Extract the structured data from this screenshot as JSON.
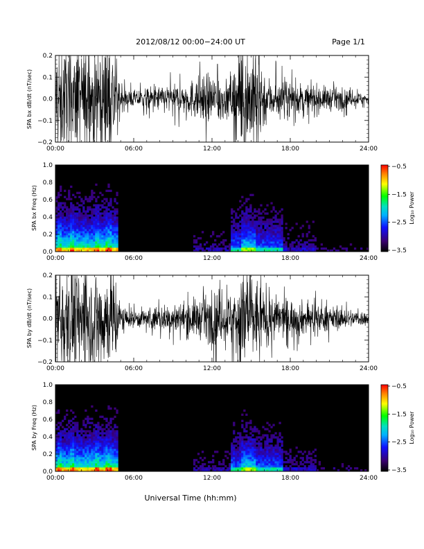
{
  "header": {
    "title": "2012/08/12  00:00−24:00 UT",
    "page": "Page 1/1"
  },
  "footer": {
    "xlabel": "Universal Time (hh:mm)"
  },
  "chart_data": [
    {
      "type": "line",
      "ylabel": "SPA bx dB/dt (nT/sec)",
      "xlim": [
        0,
        24
      ],
      "ylim": [
        -0.2,
        0.2
      ],
      "x_ticks": [
        "00:00",
        "06:00",
        "12:00",
        "18:00",
        "24:00"
      ],
      "y_ticks": [
        "0.2",
        "0.1",
        "0.0",
        "−0.1",
        "−0.2"
      ],
      "envelope": {
        "x": [
          0,
          0.5,
          1,
          1.5,
          2,
          2.5,
          3,
          3.5,
          4,
          4.5,
          5,
          5.5,
          6,
          6.5,
          7,
          7.5,
          8,
          8.5,
          9,
          9.5,
          10,
          10.5,
          11,
          11.5,
          12,
          12.5,
          13,
          13.5,
          14,
          14.5,
          15,
          15.5,
          16,
          16.5,
          17,
          17.5,
          18,
          18.5,
          19,
          19.5,
          20,
          20.5,
          21,
          21.5,
          22,
          22.5,
          23,
          23.5,
          24
        ],
        "amp": [
          0.22,
          0.22,
          0.22,
          0.22,
          0.22,
          0.2,
          0.22,
          0.22,
          0.22,
          0.22,
          0.05,
          0.035,
          0.035,
          0.04,
          0.045,
          0.05,
          0.055,
          0.06,
          0.055,
          0.06,
          0.065,
          0.08,
          0.09,
          0.1,
          0.09,
          0.12,
          0.07,
          0.09,
          0.22,
          0.22,
          0.22,
          0.22,
          0.12,
          0.08,
          0.08,
          0.07,
          0.075,
          0.065,
          0.06,
          0.055,
          0.06,
          0.05,
          0.05,
          0.045,
          0.04,
          0.035,
          0.03,
          0.025,
          0.02
        ]
      }
    },
    {
      "type": "heatmap",
      "ylabel": "SPA bx Freq (Hz)",
      "xlim": [
        0,
        24
      ],
      "ylim": [
        0.0,
        1.0
      ],
      "x_ticks": [
        "00:00",
        "06:00",
        "12:00",
        "18:00",
        "24:00"
      ],
      "y_ticks": [
        "1.0",
        "0.8",
        "0.6",
        "0.4",
        "0.2",
        "0.0"
      ],
      "colorbar": {
        "label": "Log₁₀ Power",
        "ticks": [
          "−0.5",
          "−1.5",
          "−2.5",
          "−3.5"
        ],
        "range": [
          -3.5,
          -0.5
        ]
      }
    },
    {
      "type": "line",
      "ylabel": "SPA by dB/dt (nT/sec)",
      "xlim": [
        0,
        24
      ],
      "ylim": [
        -0.2,
        0.2
      ],
      "x_ticks": [
        "00:00",
        "06:00",
        "12:00",
        "18:00",
        "24:00"
      ],
      "y_ticks": [
        "0.2",
        "0.1",
        "0.0",
        "−0.1",
        "−0.2"
      ],
      "envelope": {
        "x": [
          0,
          0.5,
          1,
          1.5,
          2,
          2.5,
          3,
          3.5,
          4,
          4.5,
          5,
          5.5,
          6,
          6.5,
          7,
          7.5,
          8,
          8.5,
          9,
          9.5,
          10,
          10.5,
          11,
          11.5,
          12,
          12.5,
          13,
          13.5,
          14,
          14.5,
          15,
          15.5,
          16,
          16.5,
          17,
          17.5,
          18,
          18.5,
          19,
          19.5,
          20,
          20.5,
          21,
          21.5,
          22,
          22.5,
          23,
          23.5,
          24
        ],
        "amp": [
          0.22,
          0.22,
          0.22,
          0.22,
          0.22,
          0.18,
          0.22,
          0.22,
          0.2,
          0.22,
          0.06,
          0.04,
          0.035,
          0.04,
          0.045,
          0.05,
          0.05,
          0.055,
          0.06,
          0.065,
          0.07,
          0.08,
          0.08,
          0.09,
          0.1,
          0.12,
          0.09,
          0.12,
          0.22,
          0.22,
          0.2,
          0.16,
          0.12,
          0.1,
          0.09,
          0.08,
          0.08,
          0.075,
          0.07,
          0.065,
          0.06,
          0.055,
          0.05,
          0.045,
          0.04,
          0.04,
          0.035,
          0.03,
          0.03
        ]
      }
    },
    {
      "type": "heatmap",
      "ylabel": "SPA by Freq (Hz)",
      "xlim": [
        0,
        24
      ],
      "ylim": [
        0.0,
        1.0
      ],
      "x_ticks": [
        "00:00",
        "06:00",
        "12:00",
        "18:00",
        "24:00"
      ],
      "y_ticks": [
        "1.0",
        "0.8",
        "0.6",
        "0.4",
        "0.2",
        "0.0"
      ],
      "colorbar": {
        "label": "Log₁₀ Power",
        "ticks": [
          "−0.5",
          "−1.5",
          "−2.5",
          "−3.5"
        ],
        "range": [
          -3.5,
          -0.5
        ]
      }
    }
  ]
}
